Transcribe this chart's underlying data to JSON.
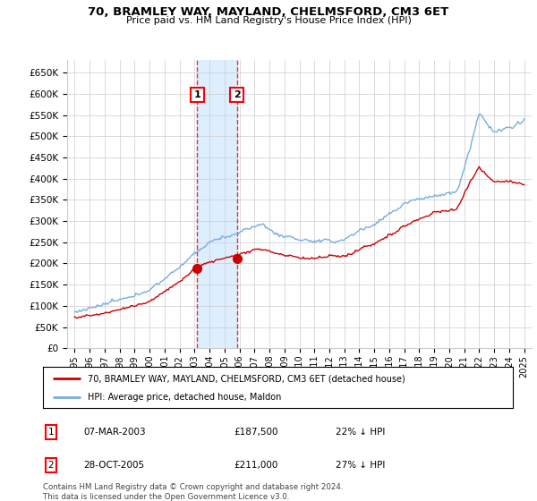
{
  "title": "70, BRAMLEY WAY, MAYLAND, CHELMSFORD, CM3 6ET",
  "subtitle": "Price paid vs. HM Land Registry's House Price Index (HPI)",
  "legend_line1": "70, BRAMLEY WAY, MAYLAND, CHELMSFORD, CM3 6ET (detached house)",
  "legend_line2": "HPI: Average price, detached house, Maldon",
  "footer": "Contains HM Land Registry data © Crown copyright and database right 2024.\nThis data is licensed under the Open Government Licence v3.0.",
  "sale1_date": "07-MAR-2003",
  "sale1_price": "£187,500",
  "sale1_hpi": "22% ↓ HPI",
  "sale2_date": "28-OCT-2005",
  "sale2_price": "£211,000",
  "sale2_hpi": "27% ↓ HPI",
  "red_line_color": "#cc0000",
  "blue_line_color": "#7aadde",
  "background_color": "#ffffff",
  "grid_color": "#cccccc",
  "shade_color": "#ddeeff",
  "marker1_year": 2003.18,
  "marker2_year": 2005.82,
  "marker1_price": 187500,
  "marker2_price": 211000,
  "ylim_max": 680000,
  "yticks": [
    0,
    50000,
    100000,
    150000,
    200000,
    250000,
    300000,
    350000,
    400000,
    450000,
    500000,
    550000,
    600000,
    650000
  ],
  "xlim_start": 1994.5,
  "xlim_end": 2025.5
}
